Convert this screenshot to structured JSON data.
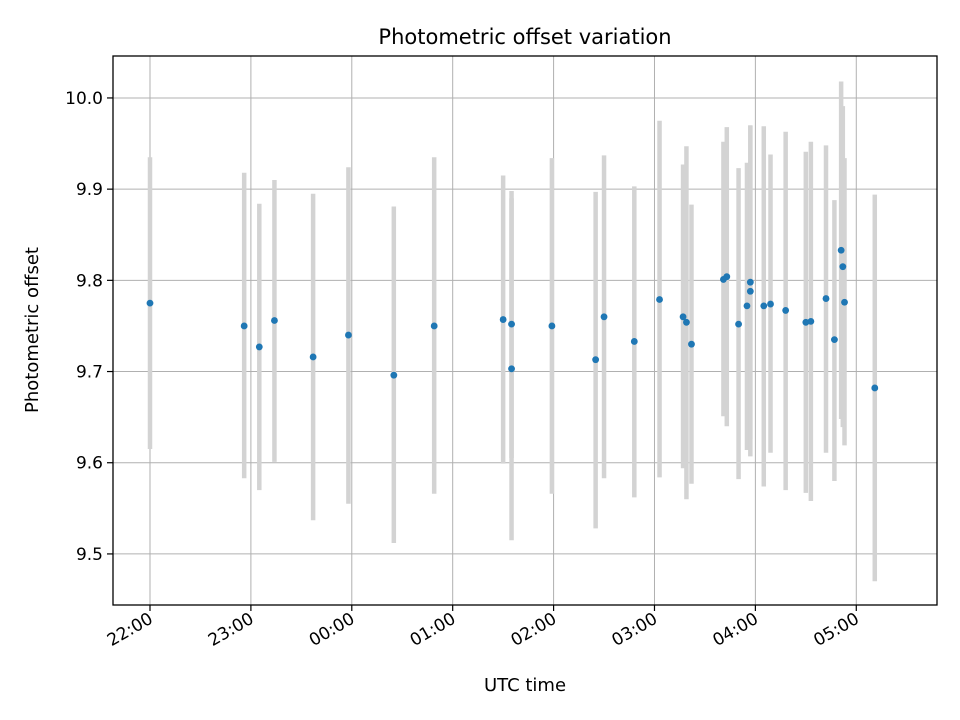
{
  "chart_data": {
    "type": "scatter",
    "title": "Photometric offset variation",
    "xlabel": "UTC time",
    "ylabel": "Photometric offset",
    "grid": true,
    "x_unit": "UTC hour (HH:MM)",
    "xlim": [
      "21:38",
      "05:48"
    ],
    "ylim": [
      9.444,
      10.046
    ],
    "x_ticks": [
      "22:00",
      "23:00",
      "00:00",
      "01:00",
      "02:00",
      "03:00",
      "04:00",
      "05:00"
    ],
    "y_ticks": [
      "9.5",
      "9.6",
      "9.7",
      "9.8",
      "9.9",
      "10.0"
    ],
    "colors": {
      "points": "#1f77b4",
      "error_bars": "#d3d3d3",
      "grid": "#b0b0b0"
    },
    "series": [
      {
        "points": [
          {
            "x": "22:00",
            "y": 9.775,
            "low": 9.615,
            "high": 9.935
          },
          {
            "x": "22:56",
            "y": 9.75,
            "low": 9.583,
            "high": 9.918
          },
          {
            "x": "23:05",
            "y": 9.727,
            "low": 9.57,
            "high": 9.884
          },
          {
            "x": "23:14",
            "y": 9.756,
            "low": 9.601,
            "high": 9.91
          },
          {
            "x": "23:37",
            "y": 9.716,
            "low": 9.537,
            "high": 9.895
          },
          {
            "x": "23:58",
            "y": 9.74,
            "low": 9.555,
            "high": 9.924
          },
          {
            "x": "00:25",
            "y": 9.696,
            "low": 9.512,
            "high": 9.881
          },
          {
            "x": "00:49",
            "y": 9.75,
            "low": 9.566,
            "high": 9.935
          },
          {
            "x": "01:30",
            "y": 9.757,
            "low": 9.599,
            "high": 9.915
          },
          {
            "x": "01:35",
            "y": 9.752,
            "low": 9.605,
            "high": 9.898
          },
          {
            "x": "01:35",
            "y": 9.703,
            "low": 9.515,
            "high": 9.89
          },
          {
            "x": "01:59",
            "y": 9.75,
            "low": 9.566,
            "high": 9.934
          },
          {
            "x": "02:25",
            "y": 9.713,
            "low": 9.528,
            "high": 9.897
          },
          {
            "x": "02:30",
            "y": 9.76,
            "low": 9.583,
            "high": 9.937
          },
          {
            "x": "02:48",
            "y": 9.733,
            "low": 9.562,
            "high": 9.903
          },
          {
            "x": "03:03",
            "y": 9.779,
            "low": 9.584,
            "high": 9.975
          },
          {
            "x": "03:17",
            "y": 9.76,
            "low": 9.594,
            "high": 9.927
          },
          {
            "x": "03:19",
            "y": 9.754,
            "low": 9.56,
            "high": 9.947
          },
          {
            "x": "03:22",
            "y": 9.73,
            "low": 9.577,
            "high": 9.883
          },
          {
            "x": "03:41",
            "y": 9.801,
            "low": 9.651,
            "high": 9.952
          },
          {
            "x": "03:43",
            "y": 9.804,
            "low": 9.64,
            "high": 9.968
          },
          {
            "x": "03:50",
            "y": 9.752,
            "low": 9.582,
            "high": 9.923
          },
          {
            "x": "03:55",
            "y": 9.772,
            "low": 9.614,
            "high": 9.929
          },
          {
            "x": "03:57",
            "y": 9.798,
            "low": 9.626,
            "high": 9.97
          },
          {
            "x": "03:57",
            "y": 9.788,
            "low": 9.607,
            "high": 9.969
          },
          {
            "x": "04:05",
            "y": 9.772,
            "low": 9.574,
            "high": 9.969
          },
          {
            "x": "04:09",
            "y": 9.774,
            "low": 9.611,
            "high": 9.938
          },
          {
            "x": "04:18",
            "y": 9.767,
            "low": 9.57,
            "high": 9.963
          },
          {
            "x": "04:30",
            "y": 9.754,
            "low": 9.567,
            "high": 9.941
          },
          {
            "x": "04:33",
            "y": 9.755,
            "low": 9.558,
            "high": 9.952
          },
          {
            "x": "04:42",
            "y": 9.78,
            "low": 9.611,
            "high": 9.948
          },
          {
            "x": "04:47",
            "y": 9.735,
            "low": 9.58,
            "high": 9.888
          },
          {
            "x": "04:51",
            "y": 9.833,
            "low": 9.648,
            "high": 10.018
          },
          {
            "x": "04:52",
            "y": 9.815,
            "low": 9.639,
            "high": 9.991
          },
          {
            "x": "04:53",
            "y": 9.776,
            "low": 9.619,
            "high": 9.934
          },
          {
            "x": "05:11",
            "y": 9.682,
            "low": 9.47,
            "high": 9.894
          }
        ]
      }
    ]
  }
}
